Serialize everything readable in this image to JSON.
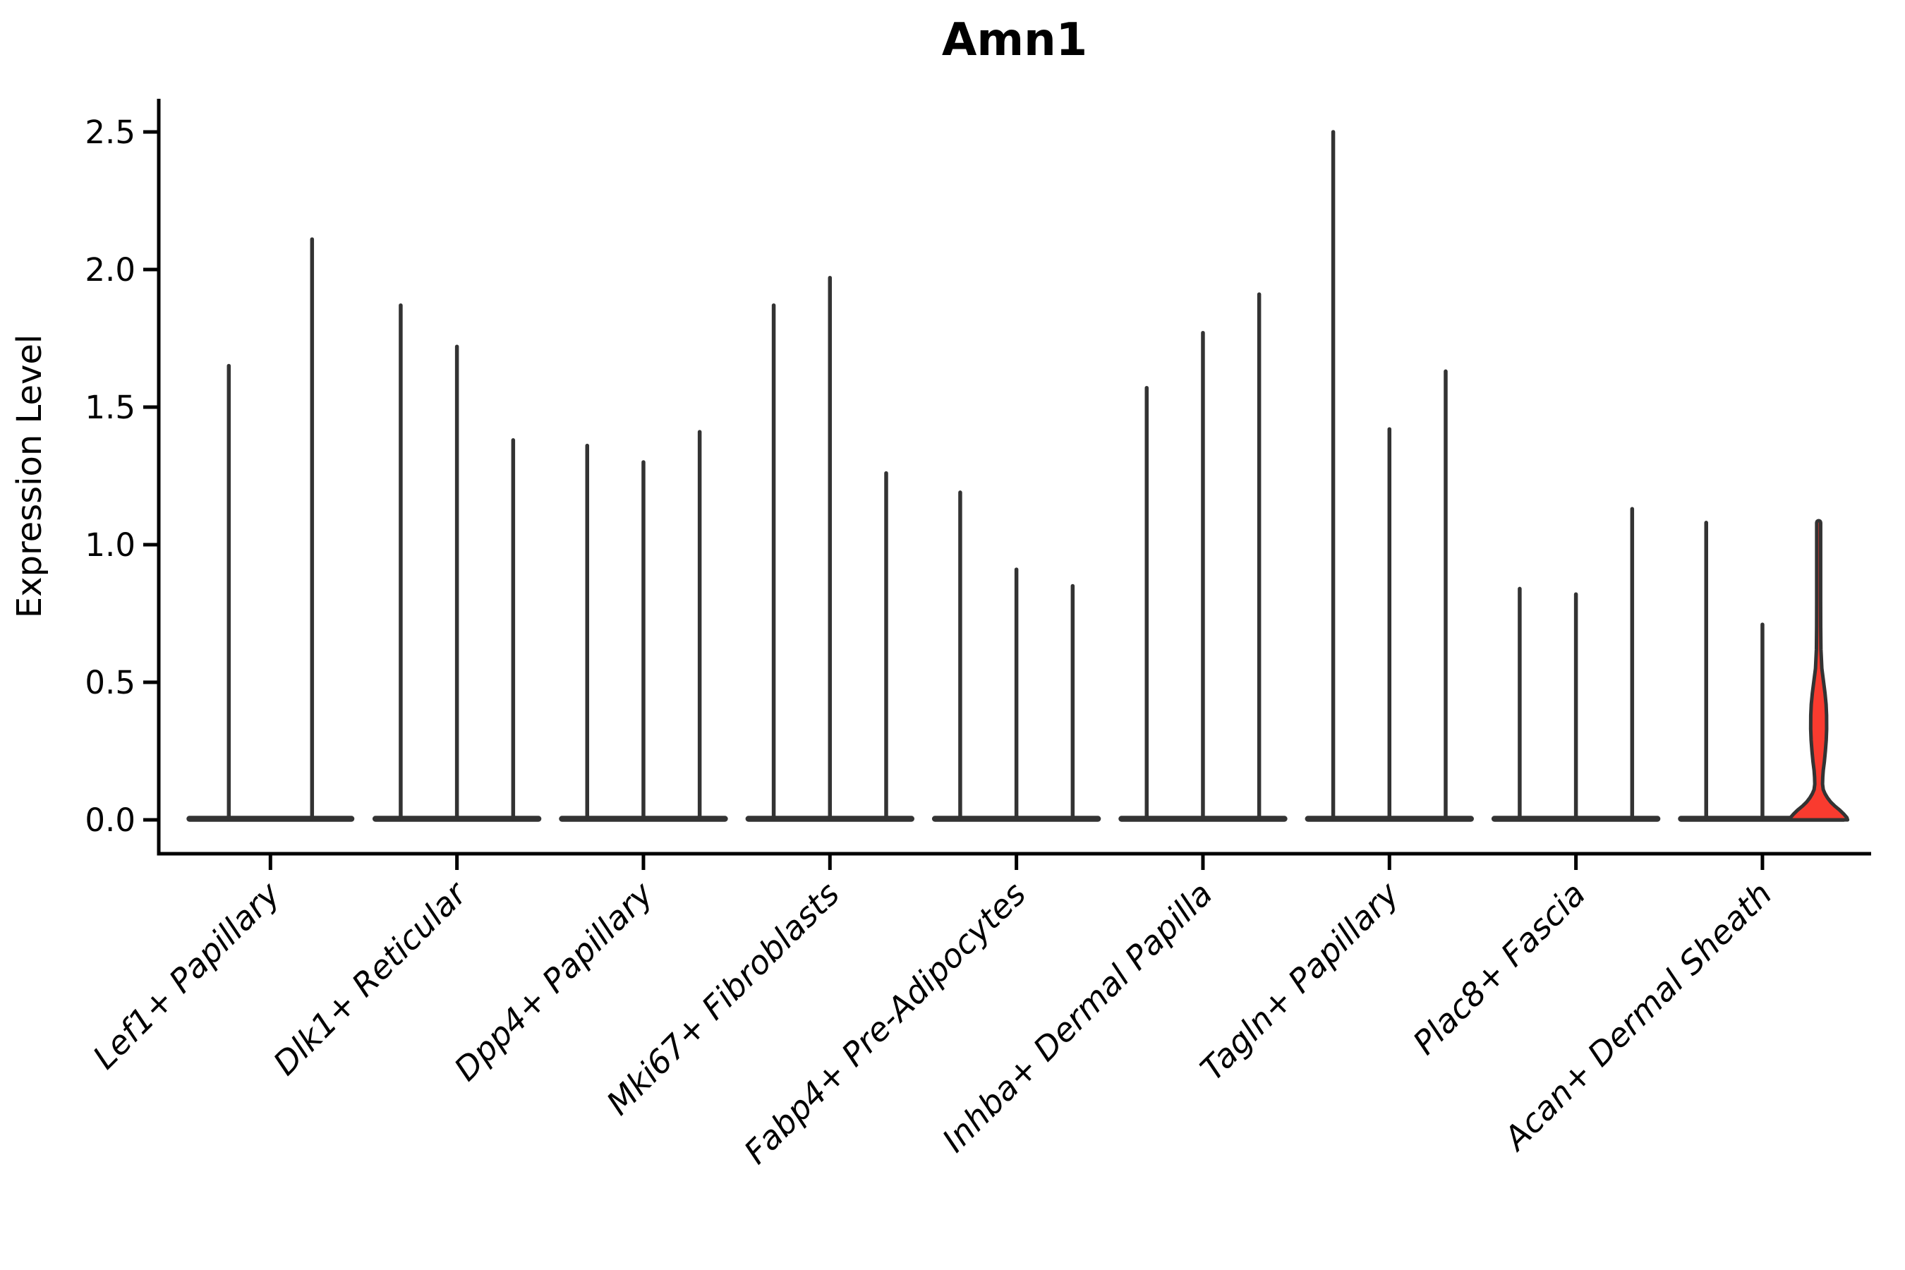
{
  "chart_data": {
    "type": "violin",
    "title": "Amn1",
    "ylabel": "Expression Level",
    "xlabel": "",
    "ylim": [
      0,
      2.62
    ],
    "yticks": [
      0.0,
      0.5,
      1.0,
      1.5,
      2.0,
      2.5
    ],
    "ytick_labels": [
      "0.0",
      "0.5",
      "1.0",
      "1.5",
      "2.0",
      "2.5"
    ],
    "grid": false,
    "legend": "none",
    "x_tick_rotation": 45,
    "categories": [
      "Lef1+ Papillary",
      "Dlk1+ Reticular",
      "Dpp4+ Papillary",
      "Mki67+ Fibroblasts",
      "Fabp4+ Pre-Adipocytes",
      "Inhba+ Dermal Papilla",
      "Tagln+ Papillary",
      "Plac8+ Fascia",
      "Acan+ Dermal Sheath"
    ],
    "series": [
      {
        "category": "Lef1+ Papillary",
        "violin_max_expression": [
          1.65,
          2.11
        ]
      },
      {
        "category": "Dlk1+ Reticular",
        "violin_max_expression": [
          1.87,
          1.72,
          1.38
        ]
      },
      {
        "category": "Dpp4+ Papillary",
        "violin_max_expression": [
          1.36,
          1.3,
          1.41
        ]
      },
      {
        "category": "Mki67+ Fibroblasts",
        "violin_max_expression": [
          1.87,
          1.97,
          1.26
        ]
      },
      {
        "category": "Fabp4+ Pre-Adipocytes",
        "violin_max_expression": [
          1.19,
          0.91,
          0.85
        ]
      },
      {
        "category": "Inhba+ Dermal Papilla",
        "violin_max_expression": [
          1.57,
          1.77,
          1.91
        ]
      },
      {
        "category": "Tagln+ Papillary",
        "violin_max_expression": [
          2.5,
          1.42,
          1.63
        ]
      },
      {
        "category": "Plac8+ Fascia",
        "violin_max_expression": [
          0.84,
          0.82,
          1.13
        ]
      },
      {
        "category": "Acan+ Dermal Sheath",
        "violin_max_expression": [
          1.08,
          0.71,
          1.08
        ],
        "highlighted_violin_index": 2
      }
    ],
    "violin_color": "#333333",
    "axis_color": "#000000",
    "highlight_fill": "#f93b2f",
    "highlight_profile": [
      [
        1.08,
        2.8
      ],
      [
        1.0,
        2.8
      ],
      [
        0.9,
        2.8
      ],
      [
        0.8,
        2.8
      ],
      [
        0.7,
        2.9
      ],
      [
        0.62,
        3.2
      ],
      [
        0.55,
        4.5
      ],
      [
        0.5,
        7.0
      ],
      [
        0.46,
        9.0
      ],
      [
        0.42,
        10.5
      ],
      [
        0.38,
        11.2
      ],
      [
        0.33,
        11.3
      ],
      [
        0.29,
        10.7
      ],
      [
        0.25,
        9.5
      ],
      [
        0.21,
        8.0
      ],
      [
        0.18,
        6.5
      ],
      [
        0.155,
        5.8
      ],
      [
        0.13,
        5.5
      ],
      [
        0.11,
        6.5
      ],
      [
        0.095,
        9.0
      ],
      [
        0.08,
        12.5
      ],
      [
        0.065,
        17.0
      ],
      [
        0.05,
        23.0
      ],
      [
        0.035,
        30.0
      ],
      [
        0.02,
        36.0
      ],
      [
        0.008,
        40.0
      ],
      [
        0.0,
        41.0
      ]
    ]
  }
}
